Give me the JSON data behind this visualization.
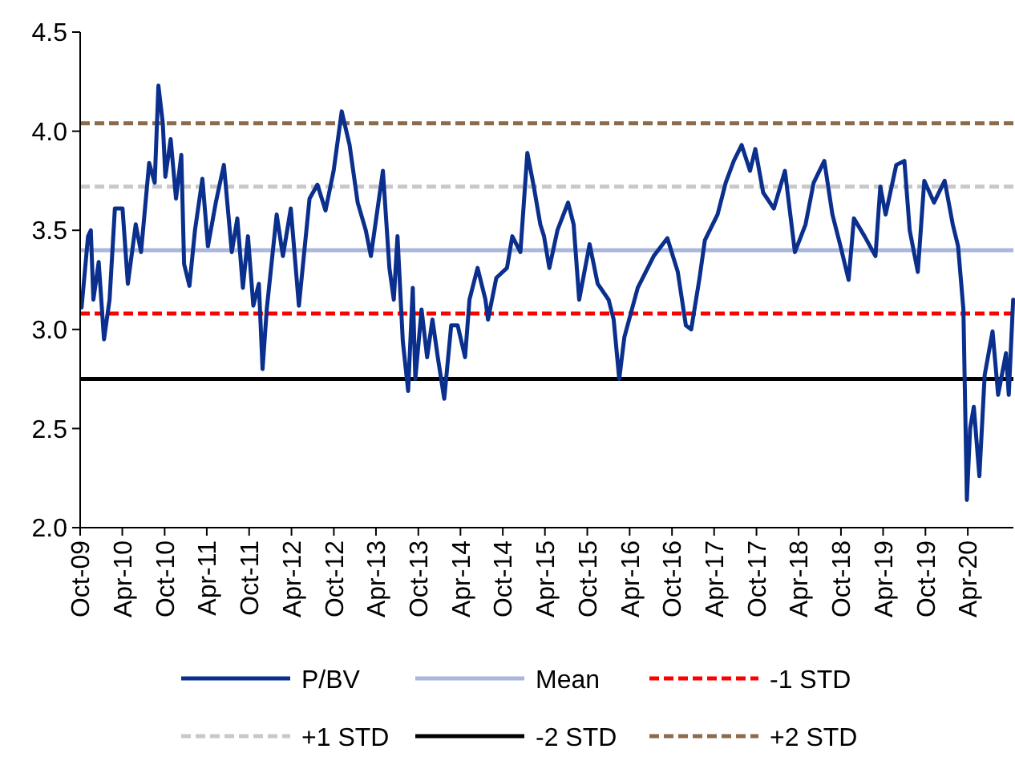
{
  "chart_data": {
    "type": "line",
    "xlim": [
      "2009-10-01",
      "2020-10-15"
    ],
    "ylim": [
      2,
      4.5
    ],
    "yticks": [
      {
        "value": 2,
        "label": "2.0"
      },
      {
        "value": 2.5,
        "label": "2.5"
      },
      {
        "value": 3,
        "label": "3.0"
      },
      {
        "value": 3.5,
        "label": "3.5"
      },
      {
        "value": 4,
        "label": "4.0"
      },
      {
        "value": 4.5,
        "label": "4.5"
      }
    ],
    "xticks": [
      {
        "value": "2009-10-01",
        "label": "Oct-09"
      },
      {
        "value": "2010-04-01",
        "label": "Apr-10"
      },
      {
        "value": "2010-10-01",
        "label": "Oct-10"
      },
      {
        "value": "2011-04-01",
        "label": "Apr-11"
      },
      {
        "value": "2011-10-01",
        "label": "Oct-11"
      },
      {
        "value": "2012-04-01",
        "label": "Apr-12"
      },
      {
        "value": "2012-10-01",
        "label": "Oct-12"
      },
      {
        "value": "2013-04-01",
        "label": "Apr-13"
      },
      {
        "value": "2013-10-01",
        "label": "Oct-13"
      },
      {
        "value": "2014-04-01",
        "label": "Apr-14"
      },
      {
        "value": "2014-10-01",
        "label": "Oct-14"
      },
      {
        "value": "2015-04-01",
        "label": "Apr-15"
      },
      {
        "value": "2015-10-01",
        "label": "Oct-15"
      },
      {
        "value": "2016-04-01",
        "label": "Apr-16"
      },
      {
        "value": "2016-10-01",
        "label": "Oct-16"
      },
      {
        "value": "2017-04-01",
        "label": "Apr-17"
      },
      {
        "value": "2017-10-01",
        "label": "Oct-17"
      },
      {
        "value": "2018-04-01",
        "label": "Apr-18"
      },
      {
        "value": "2018-10-01",
        "label": "Oct-18"
      },
      {
        "value": "2019-04-01",
        "label": "Apr-19"
      },
      {
        "value": "2019-10-01",
        "label": "Oct-19"
      },
      {
        "value": "2020-04-01",
        "label": "Apr-20"
      }
    ],
    "grid": false,
    "legend": "bottom",
    "line_style": "solid",
    "series": [
      {
        "name": "P/BV",
        "color": "#0a2f8c",
        "x": [
          "2009-10-07",
          "2009-11-04",
          "2009-11-16",
          "2009-11-27",
          "2009-12-20",
          "2010-01-12",
          "2010-02-05",
          "2010-02-28",
          "2010-04-02",
          "2010-04-25",
          "2010-05-29",
          "2010-06-21",
          "2010-07-26",
          "2010-08-19",
          "2010-09-04",
          "2010-09-23",
          "2010-10-04",
          "2010-10-27",
          "2010-11-19",
          "2010-12-12",
          "2010-12-24",
          "2011-01-16",
          "2011-02-09",
          "2011-03-13",
          "2011-04-06",
          "2011-05-10",
          "2011-06-14",
          "2011-07-18",
          "2011-08-11",
          "2011-09-04",
          "2011-09-26",
          "2011-10-19",
          "2011-11-12",
          "2011-11-28",
          "2011-12-16",
          "2012-01-28",
          "2012-02-24",
          "2012-03-29",
          "2012-05-03",
          "2012-06-18",
          "2012-07-22",
          "2012-08-26",
          "2012-09-30",
          "2012-11-04",
          "2012-12-08",
          "2013-01-12",
          "2013-02-16",
          "2013-03-10",
          "2013-04-02",
          "2013-05-01",
          "2013-05-29",
          "2013-06-17",
          "2013-07-03",
          "2013-07-26",
          "2013-08-18",
          "2013-09-07",
          "2013-09-18",
          "2013-10-15",
          "2013-11-08",
          "2013-12-01",
          "2013-12-24",
          "2014-01-21",
          "2014-02-20",
          "2014-03-20",
          "2014-04-21",
          "2014-05-10",
          "2014-06-14",
          "2014-07-18",
          "2014-07-29",
          "2014-09-03",
          "2014-10-19",
          "2014-11-11",
          "2014-12-16",
          "2015-01-15",
          "2015-02-12",
          "2015-03-12",
          "2015-03-28",
          "2015-04-20",
          "2015-05-25",
          "2015-07-10",
          "2015-08-03",
          "2015-08-27",
          "2015-10-11",
          "2015-11-15",
          "2016-01-01",
          "2016-01-23",
          "2016-02-16",
          "2016-03-09",
          "2016-05-06",
          "2016-07-14",
          "2016-09-11",
          "2016-10-26",
          "2016-11-30",
          "2016-12-23",
          "2017-01-28",
          "2017-02-20",
          "2017-04-16",
          "2017-05-21",
          "2017-06-25",
          "2017-07-29",
          "2017-09-03",
          "2017-09-26",
          "2017-10-30",
          "2017-12-15",
          "2018-02-01",
          "2018-03-16",
          "2018-05-01",
          "2018-06-05",
          "2018-07-21",
          "2018-08-25",
          "2018-09-29",
          "2018-11-03",
          "2018-11-26",
          "2019-01-11",
          "2019-02-27",
          "2019-03-20",
          "2019-04-12",
          "2019-05-28",
          "2019-07-02",
          "2019-07-25",
          "2019-08-29",
          "2019-09-26",
          "2019-11-07",
          "2019-12-23",
          "2020-01-27",
          "2020-02-19",
          "2020-03-13",
          "2020-03-28",
          "2020-04-11",
          "2020-04-27",
          "2020-05-21",
          "2020-06-13",
          "2020-07-17",
          "2020-08-10",
          "2020-09-13",
          "2020-09-25",
          "2020-10-14"
        ],
        "values": [
          3.11,
          3.47,
          3.5,
          3.15,
          3.34,
          2.95,
          3.15,
          3.61,
          3.61,
          3.23,
          3.53,
          3.39,
          3.84,
          3.74,
          4.23,
          4.04,
          3.77,
          3.96,
          3.66,
          3.88,
          3.33,
          3.22,
          3.5,
          3.76,
          3.42,
          3.64,
          3.83,
          3.39,
          3.56,
          3.21,
          3.47,
          3.12,
          3.23,
          2.8,
          3.1,
          3.58,
          3.37,
          3.61,
          3.12,
          3.66,
          3.73,
          3.6,
          3.8,
          4.1,
          3.93,
          3.64,
          3.5,
          3.37,
          3.56,
          3.8,
          3.31,
          3.15,
          3.47,
          2.94,
          2.69,
          3.21,
          2.75,
          3.1,
          2.86,
          3.05,
          2.86,
          2.65,
          3.02,
          3.02,
          2.86,
          3.15,
          3.31,
          3.15,
          3.05,
          3.26,
          3.31,
          3.47,
          3.39,
          3.89,
          3.72,
          3.53,
          3.47,
          3.31,
          3.5,
          3.64,
          3.53,
          3.15,
          3.43,
          3.23,
          3.15,
          3.05,
          2.75,
          2.96,
          3.21,
          3.37,
          3.46,
          3.29,
          3.02,
          3,
          3.26,
          3.45,
          3.58,
          3.74,
          3.85,
          3.93,
          3.8,
          3.91,
          3.69,
          3.61,
          3.8,
          3.39,
          3.53,
          3.74,
          3.85,
          3.58,
          3.42,
          3.25,
          3.56,
          3.47,
          3.37,
          3.72,
          3.58,
          3.83,
          3.85,
          3.5,
          3.29,
          3.75,
          3.64,
          3.75,
          3.53,
          3.42,
          3.1,
          2.14,
          2.5,
          2.61,
          2.26,
          2.77,
          2.99,
          2.67,
          2.88,
          2.67,
          3.15
        ]
      }
    ],
    "ref_lines": [
      {
        "axis": "y",
        "value": 3.4,
        "label": "Mean",
        "color": "#aab6dc",
        "line_style": "solid"
      },
      {
        "axis": "y",
        "value": 3.08,
        "label": "-1 STD",
        "color": "#ff0000",
        "line_style": "dashed"
      },
      {
        "axis": "y",
        "value": 3.72,
        "label": "+1 STD",
        "color": "#c8c8c8",
        "line_style": "dashed"
      },
      {
        "axis": "y",
        "value": 2.75,
        "label": "-2 STD",
        "color": "#000000",
        "line_style": "solid"
      },
      {
        "axis": "y",
        "value": 4.04,
        "label": "+2 STD",
        "color": "#8c6a4c",
        "line_style": "dashed"
      }
    ]
  }
}
